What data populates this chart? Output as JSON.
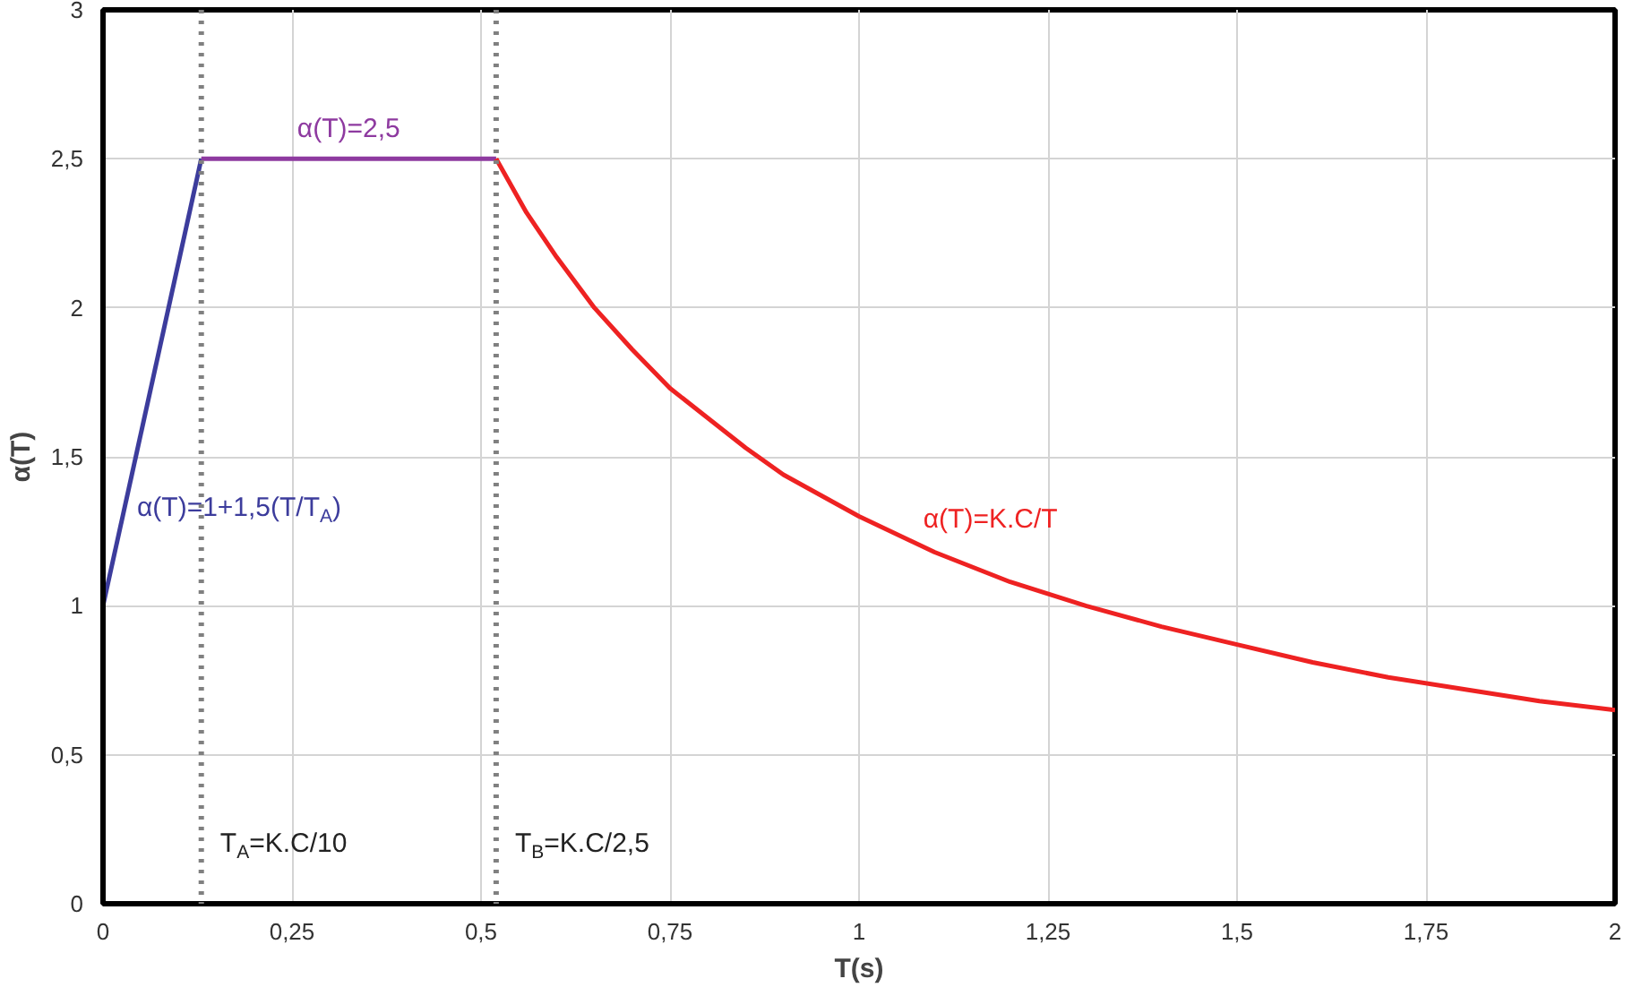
{
  "chart_data": {
    "type": "line",
    "xlabel": "T(s)",
    "ylabel": "α(T)",
    "xlim": [
      0,
      2
    ],
    "ylim": [
      0,
      3
    ],
    "xticks": [
      0,
      {
        "value": 0.25,
        "label": "0,25"
      },
      {
        "value": 0.5,
        "label": "0,5"
      },
      {
        "value": 0.75,
        "label": "0,75"
      },
      1,
      {
        "value": 1.25,
        "label": "1,25"
      },
      {
        "value": 1.5,
        "label": "1,5"
      },
      {
        "value": 1.75,
        "label": "1,75"
      },
      2
    ],
    "yticks": [
      0,
      {
        "value": 0.5,
        "label": "0,5"
      },
      1,
      {
        "value": 1.5,
        "label": "1,5"
      },
      2,
      {
        "value": 2.5,
        "label": "2,5"
      },
      3
    ],
    "grid": true,
    "marker": "none",
    "line_style": "solid",
    "series": [
      {
        "name": "α(T)=1+1,5(T/T$_{A}$)",
        "color": "#3c3c9c",
        "x": [
          0,
          0.13
        ],
        "values": [
          1,
          2.5
        ]
      },
      {
        "name": "α(T)=2,5",
        "color": "#8e3aa0",
        "x": [
          0.13,
          0.52
        ],
        "values": [
          2.5,
          2.5
        ]
      },
      {
        "name": "α(T)=K.C/T",
        "color": "#ee2222",
        "x": [
          0.52,
          0.56,
          0.6,
          0.65,
          0.7,
          0.75,
          0.8,
          0.85,
          0.9,
          0.95,
          1.0,
          1.1,
          1.2,
          1.3,
          1.4,
          1.5,
          1.6,
          1.7,
          1.8,
          1.9,
          2.0
        ],
        "values": [
          2.5,
          2.32,
          2.17,
          2.0,
          1.86,
          1.73,
          1.63,
          1.53,
          1.44,
          1.37,
          1.3,
          1.18,
          1.08,
          1.0,
          0.93,
          0.87,
          0.81,
          0.76,
          0.72,
          0.68,
          0.65
        ]
      }
    ],
    "ref_lines": [
      {
        "axis": "x",
        "value": 0.13,
        "label": "T$_{A}$=K.C/10",
        "color": "#808080",
        "line_style": "dotted"
      },
      {
        "axis": "x",
        "value": 0.52,
        "label": "T$_{B}$=K.C/2,5",
        "color": "#808080",
        "line_style": "dotted"
      }
    ]
  }
}
